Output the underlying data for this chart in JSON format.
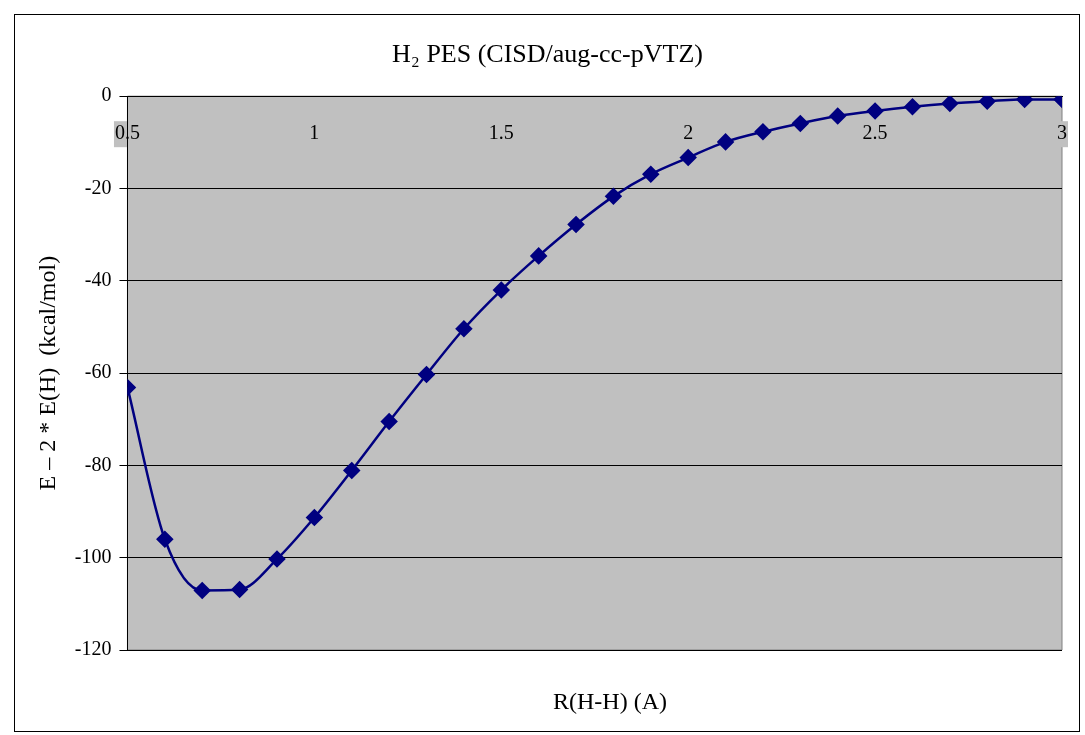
{
  "chart_data": {
    "type": "line",
    "title": "H₂ PES (CISD/aug-cc-pVTZ)",
    "xlabel": "R(H-H) (A)",
    "ylabel": "E – 2 * E(H)  (kcal/mol)",
    "x": [
      0.5,
      0.6,
      0.7,
      0.8,
      0.9,
      1.0,
      1.1,
      1.2,
      1.3,
      1.4,
      1.5,
      1.6,
      1.7,
      1.8,
      1.9,
      2.0,
      2.1,
      2.2,
      2.3,
      2.4,
      2.5,
      2.6,
      2.7,
      2.8,
      2.9,
      3.0
    ],
    "series": [
      {
        "color": "#000080",
        "values": [
          -63.1,
          -96.0,
          -107.1,
          -106.9,
          -100.3,
          -91.3,
          -81.1,
          -70.5,
          -60.3,
          -50.4,
          -42.0,
          -34.6,
          -27.8,
          -21.7,
          -16.9,
          -13.3,
          -9.9,
          -7.7,
          -5.9,
          -4.3,
          -3.2,
          -2.3,
          -1.6,
          -1.1,
          -0.7,
          -0.7
        ]
      }
    ],
    "xlim": [
      0.5,
      3
    ],
    "xticks": [
      0.5,
      1,
      1.5,
      2,
      2.5,
      3
    ],
    "ylim": [
      -120,
      0
    ],
    "yticks": [
      -120,
      -100,
      -80,
      -60,
      -40,
      -20,
      0
    ],
    "grid": "y",
    "marker": "diamond",
    "legend": false,
    "line_style": "solid"
  }
}
